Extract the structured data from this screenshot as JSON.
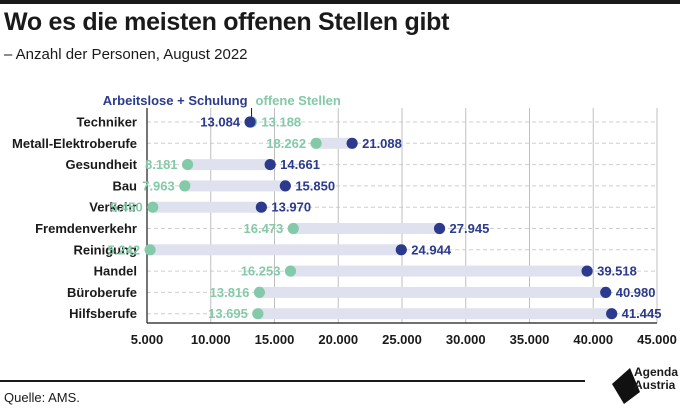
{
  "title": "Wo es die meisten offenen Stellen gibt",
  "subtitle": "– Anzahl der Personen, August 2022",
  "source": "Quelle: AMS.",
  "logo": {
    "line1": "Agenda",
    "line2": "Austria"
  },
  "colors": {
    "series_a": "#2b3a8c",
    "series_b": "#84c9a9",
    "range": "#dfe2ee",
    "grid": "#bfbfbf",
    "axis": "#1a1a1a"
  },
  "chart_data": {
    "type": "dumbbell",
    "xlim": [
      5000,
      45000
    ],
    "xticks": [
      5000,
      10000,
      15000,
      20000,
      25000,
      30000,
      35000,
      40000,
      45000
    ],
    "xtick_labels": [
      "5.000",
      "10.000",
      "15.000",
      "20.000",
      "25.000",
      "30.000",
      "35.000",
      "40.000",
      "45.000"
    ],
    "grid": true,
    "legend_position": "top-center",
    "categories": [
      "Techniker",
      "Metall-Elektroberufe",
      "Gesundheit",
      "Bau",
      "Verkehr",
      "Fremdenverkehr",
      "Reinigung",
      "Handel",
      "Büroberufe",
      "Hilfsberufe"
    ],
    "series": [
      {
        "name": "Arbeitslose + Schulung",
        "values": [
          13084,
          21088,
          14661,
          15850,
          13970,
          27945,
          24944,
          39518,
          40980,
          41445
        ],
        "labels": [
          "13.084",
          "21.088",
          "14.661",
          "15.850",
          "13.970",
          "27.945",
          "24.944",
          "39.518",
          "40.980",
          "41.445"
        ]
      },
      {
        "name": "offene Stellen",
        "values": [
          13188,
          18262,
          8181,
          7963,
          5450,
          16473,
          5242,
          16253,
          13816,
          13695
        ],
        "labels": [
          "13.188",
          "18.262",
          "8.181",
          "7.963",
          "5.450",
          "16.473",
          "5.242",
          "16.253",
          "13.816",
          "13.695"
        ]
      }
    ]
  }
}
